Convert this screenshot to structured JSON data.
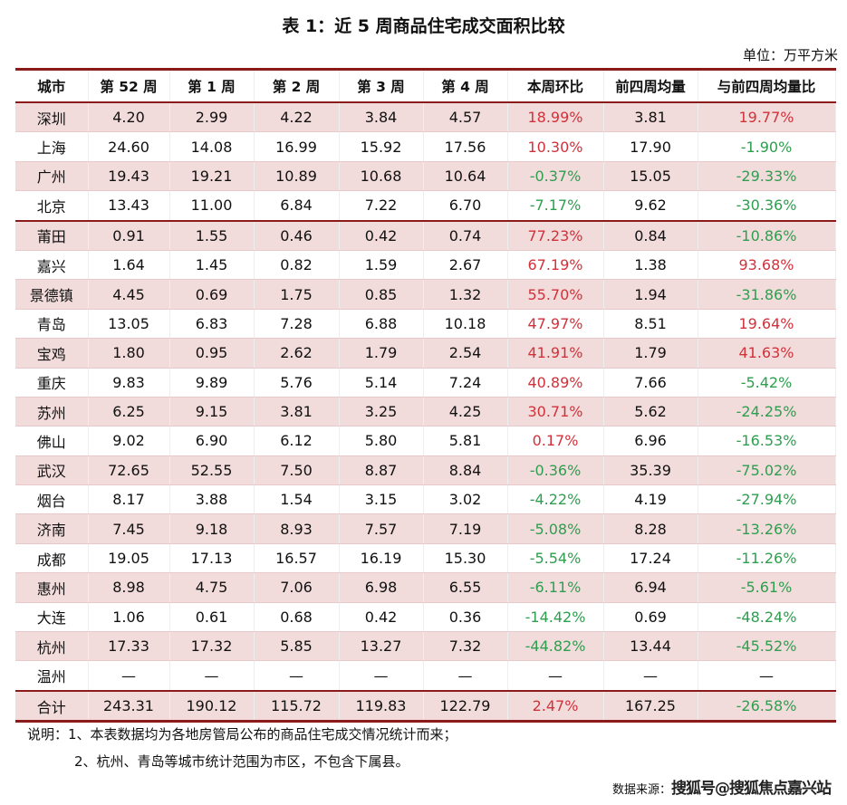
{
  "title": "表 1：近 5 周商品住宅成交面积比较",
  "unit": "单位：万平方米",
  "headers": [
    "城市",
    "第 52 周",
    "第 1 周",
    "第 2 周",
    "第 3 周",
    "第 4 周",
    "本周环比",
    "前四周均量",
    "与前四周均量比"
  ],
  "colors": {
    "up": "#d2313a",
    "down": "#2e9e4f",
    "shade": "#f2dcdb",
    "rule": "#8b1a1a"
  },
  "rows": [
    [
      "深圳",
      "4.20",
      "2.99",
      "4.22",
      "3.84",
      "4.57",
      "18.99%",
      "3.81",
      "19.77%"
    ],
    [
      "上海",
      "24.60",
      "14.08",
      "16.99",
      "15.92",
      "17.56",
      "10.30%",
      "17.90",
      "-1.90%"
    ],
    [
      "广州",
      "19.43",
      "19.21",
      "10.89",
      "10.68",
      "10.64",
      "-0.37%",
      "15.05",
      "-29.33%"
    ],
    [
      "北京",
      "13.43",
      "11.00",
      "6.84",
      "7.22",
      "6.70",
      "-7.17%",
      "9.62",
      "-30.36%"
    ],
    [
      "莆田",
      "0.91",
      "1.55",
      "0.46",
      "0.42",
      "0.74",
      "77.23%",
      "0.84",
      "-10.86%"
    ],
    [
      "嘉兴",
      "1.64",
      "1.45",
      "0.82",
      "1.59",
      "2.67",
      "67.19%",
      "1.38",
      "93.68%"
    ],
    [
      "景德镇",
      "4.45",
      "0.69",
      "1.75",
      "0.85",
      "1.32",
      "55.70%",
      "1.94",
      "-31.86%"
    ],
    [
      "青岛",
      "13.05",
      "6.83",
      "7.28",
      "6.88",
      "10.18",
      "47.97%",
      "8.51",
      "19.64%"
    ],
    [
      "宝鸡",
      "1.80",
      "0.95",
      "2.62",
      "1.79",
      "2.54",
      "41.91%",
      "1.79",
      "41.63%"
    ],
    [
      "重庆",
      "9.83",
      "9.89",
      "5.76",
      "5.14",
      "7.24",
      "40.89%",
      "7.66",
      "-5.42%"
    ],
    [
      "苏州",
      "6.25",
      "9.15",
      "3.81",
      "3.25",
      "4.25",
      "30.71%",
      "5.62",
      "-24.25%"
    ],
    [
      "佛山",
      "9.02",
      "6.90",
      "6.12",
      "5.80",
      "5.81",
      "0.17%",
      "6.96",
      "-16.53%"
    ],
    [
      "武汉",
      "72.65",
      "52.55",
      "7.50",
      "8.87",
      "8.84",
      "-0.36%",
      "35.39",
      "-75.02%"
    ],
    [
      "烟台",
      "8.17",
      "3.88",
      "1.54",
      "3.15",
      "3.02",
      "-4.22%",
      "4.19",
      "-27.94%"
    ],
    [
      "济南",
      "7.45",
      "9.18",
      "8.93",
      "7.57",
      "7.19",
      "-5.08%",
      "8.28",
      "-13.26%"
    ],
    [
      "成都",
      "19.05",
      "17.13",
      "16.57",
      "16.19",
      "15.30",
      "-5.54%",
      "17.24",
      "-11.26%"
    ],
    [
      "惠州",
      "8.98",
      "4.75",
      "7.06",
      "6.98",
      "6.55",
      "-6.11%",
      "6.94",
      "-5.61%"
    ],
    [
      "大连",
      "1.06",
      "0.61",
      "0.68",
      "0.42",
      "0.36",
      "-14.42%",
      "0.69",
      "-48.24%"
    ],
    [
      "杭州",
      "17.33",
      "17.32",
      "5.85",
      "13.27",
      "7.32",
      "-44.82%",
      "13.44",
      "-45.52%"
    ],
    [
      "温州",
      "—",
      "—",
      "—",
      "—",
      "—",
      "—",
      "—",
      "—"
    ],
    [
      "合计",
      "243.31",
      "190.12",
      "115.72",
      "119.83",
      "122.79",
      "2.47%",
      "167.25",
      "-26.58%"
    ]
  ],
  "notes": [
    "说明：1、本表数据均为各地房管局公布的商品住宅成交情况统计而来；",
    "2、杭州、青岛等城市统计范围为市区，不包含下属县。"
  ],
  "source_label": "数据来源：",
  "watermark": "搜狐号@搜狐焦点嘉兴站"
}
